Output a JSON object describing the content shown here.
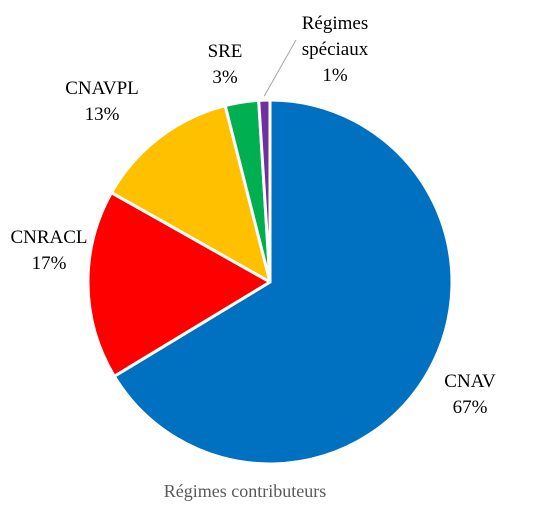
{
  "chart_data": {
    "type": "pie",
    "slices": [
      {
        "label_lines": [
          "CNAV"
        ],
        "value": 67,
        "value_label": "67%",
        "color": "#0070C0"
      },
      {
        "label_lines": [
          "CNRACL"
        ],
        "value": 17,
        "value_label": "17%",
        "color": "#FF0000"
      },
      {
        "label_lines": [
          "CNAVPL"
        ],
        "value": 13,
        "value_label": "13%",
        "color": "#FFC000"
      },
      {
        "label_lines": [
          "SRE"
        ],
        "value": 3,
        "value_label": "3%",
        "color": "#00B050"
      },
      {
        "label_lines": [
          "Régimes",
          "spéciaux"
        ],
        "value": 1,
        "value_label": "1%",
        "color": "#7030A0"
      }
    ],
    "start_angle_deg": 0,
    "direction": "clockwise",
    "caption": "Régimes contributeurs",
    "legend": "none"
  }
}
